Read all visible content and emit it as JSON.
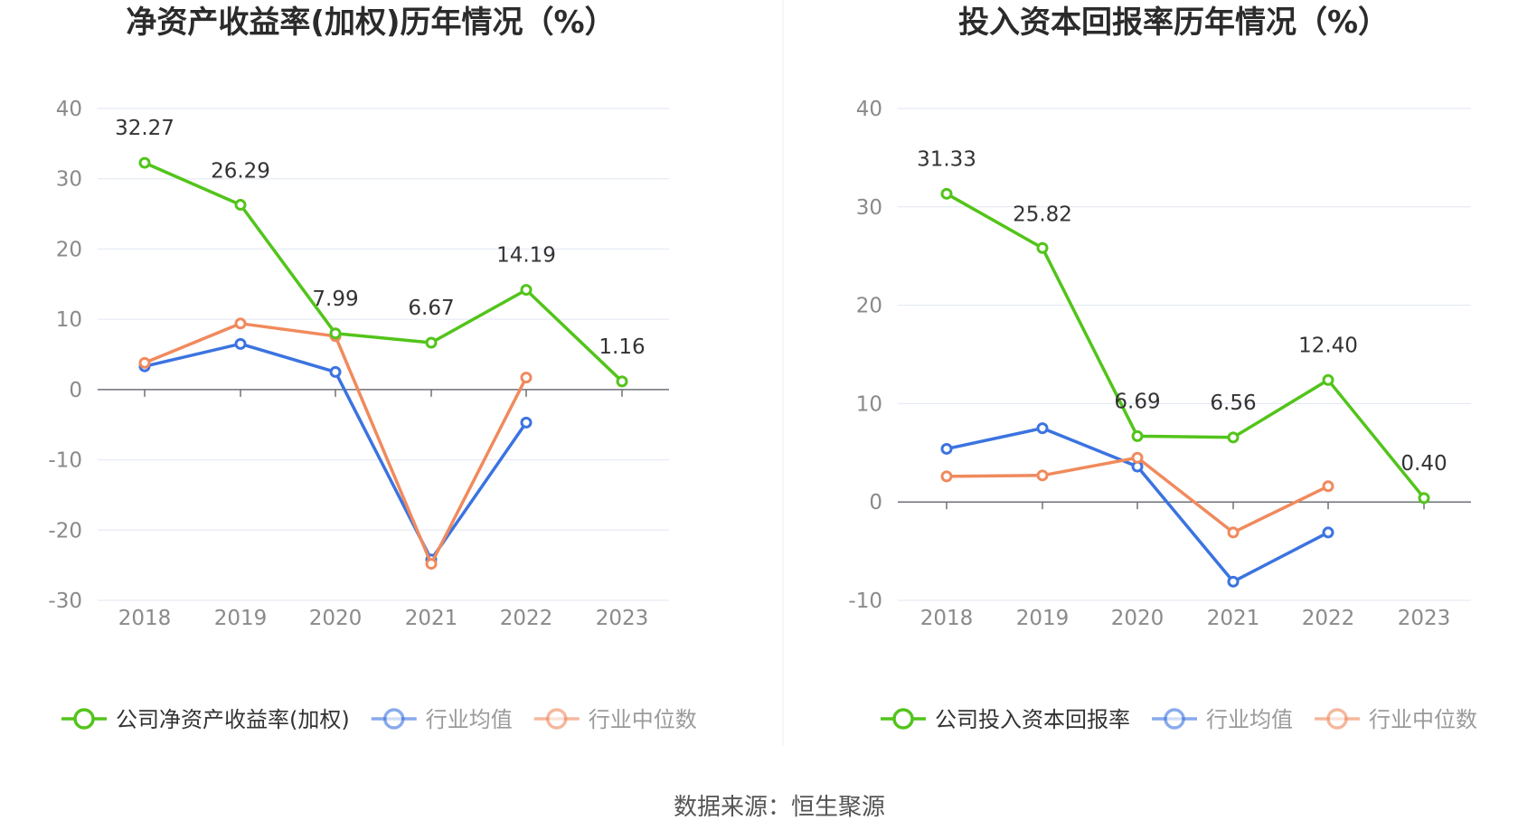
{
  "source_label": "数据来源：恒生聚源",
  "chart_data": [
    {
      "type": "line",
      "title": "净资产收益率(加权)历年情况（%）",
      "categories": [
        "2018",
        "2019",
        "2020",
        "2021",
        "2022",
        "2023"
      ],
      "ylim": [
        -30,
        40
      ],
      "yticks": [
        40,
        30,
        20,
        10,
        0,
        -10,
        -20,
        -30
      ],
      "grid": true,
      "legend_position": "bottom",
      "series": [
        {
          "name": "公司净资产收益率(加权)",
          "color": "#52c41a",
          "values": [
            32.27,
            26.29,
            7.99,
            6.67,
            14.19,
            1.16
          ],
          "labels": [
            "32.27",
            "26.29",
            "7.99",
            "6.67",
            "14.19",
            "1.16"
          ]
        },
        {
          "name": "行业均值",
          "color": "#3b73e0",
          "values": [
            3.3,
            6.5,
            2.5,
            -24.2,
            -4.7,
            null
          ]
        },
        {
          "name": "行业中位数",
          "color": "#f08a5d",
          "values": [
            3.8,
            9.4,
            7.6,
            -24.8,
            1.7,
            null
          ]
        }
      ]
    },
    {
      "type": "line",
      "title": "投入资本回报率历年情况（%）",
      "categories": [
        "2018",
        "2019",
        "2020",
        "2021",
        "2022",
        "2023"
      ],
      "ylim": [
        -10,
        40
      ],
      "yticks": [
        40,
        30,
        20,
        10,
        0,
        -10
      ],
      "grid": true,
      "legend_position": "bottom",
      "series": [
        {
          "name": "公司投入资本回报率",
          "color": "#52c41a",
          "values": [
            31.33,
            25.82,
            6.69,
            6.56,
            12.4,
            0.4
          ],
          "labels": [
            "31.33",
            "25.82",
            "6.69",
            "6.56",
            "12.40",
            "0.40"
          ]
        },
        {
          "name": "行业均值",
          "color": "#3b73e0",
          "values": [
            5.4,
            7.5,
            3.6,
            -8.1,
            -3.1,
            null
          ]
        },
        {
          "name": "行业中位数",
          "color": "#f08a5d",
          "values": [
            2.6,
            2.7,
            4.5,
            -3.1,
            1.6,
            null
          ]
        }
      ]
    }
  ]
}
